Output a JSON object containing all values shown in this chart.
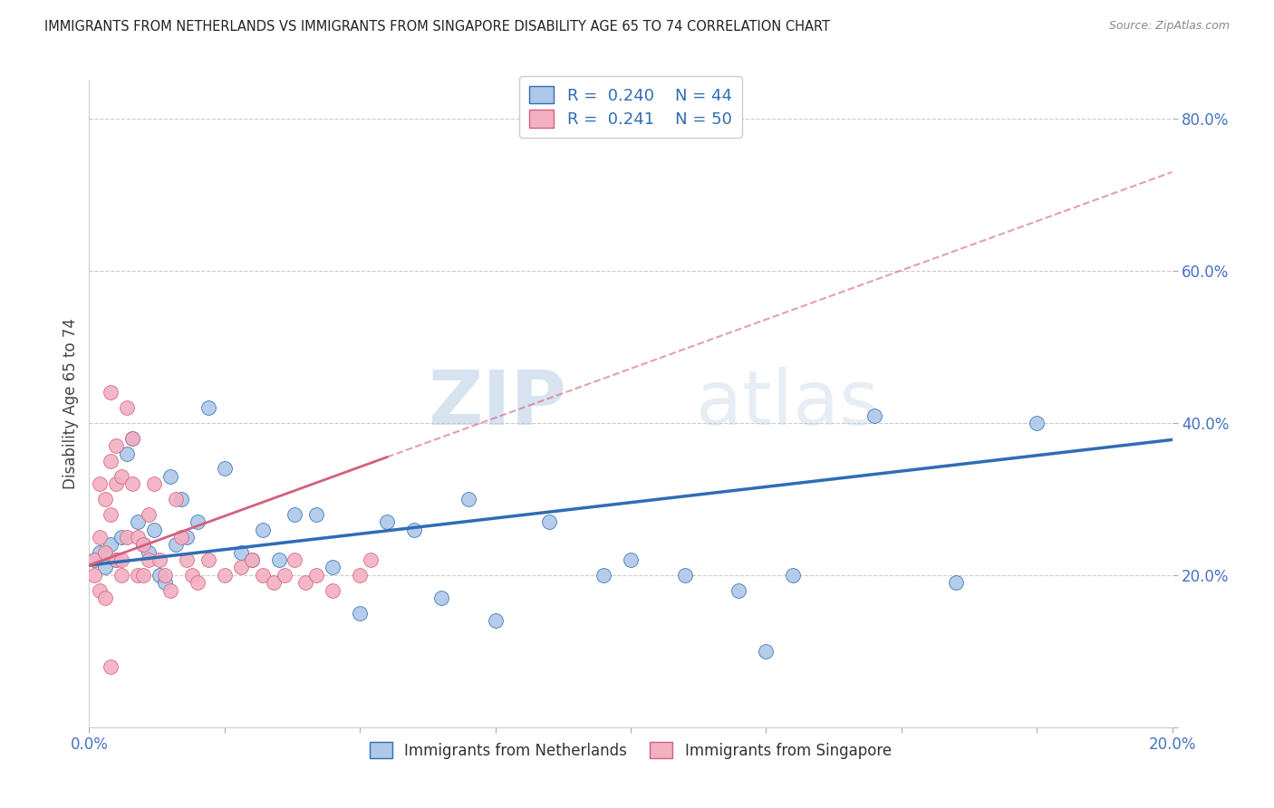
{
  "title": "IMMIGRANTS FROM NETHERLANDS VS IMMIGRANTS FROM SINGAPORE DISABILITY AGE 65 TO 74 CORRELATION CHART",
  "source": "Source: ZipAtlas.com",
  "ylabel": "Disability Age 65 to 74",
  "legend_label1": "Immigrants from Netherlands",
  "legend_label2": "Immigrants from Singapore",
  "R1": "0.240",
  "N1": "44",
  "R2": "0.241",
  "N2": "50",
  "xlim": [
    0.0,
    0.2
  ],
  "ylim": [
    0.0,
    0.85
  ],
  "xticks": [
    0.0,
    0.025,
    0.05,
    0.075,
    0.1,
    0.125,
    0.15,
    0.175,
    0.2
  ],
  "yticks": [
    0.0,
    0.2,
    0.4,
    0.6,
    0.8
  ],
  "ytick_labels": [
    "",
    "20.0%",
    "40.0%",
    "60.0%",
    "80.0%"
  ],
  "color_netherlands": "#adc8e8",
  "color_singapore": "#f2b0c2",
  "color_netherlands_line": "#2f6db5",
  "color_singapore_line": "#d45f7a",
  "watermark_zip": "ZIP",
  "watermark_atlas": "atlas",
  "netherlands_x": [
    0.001,
    0.002,
    0.003,
    0.004,
    0.005,
    0.006,
    0.007,
    0.008,
    0.009,
    0.01,
    0.011,
    0.012,
    0.013,
    0.014,
    0.015,
    0.016,
    0.017,
    0.018,
    0.02,
    0.022,
    0.025,
    0.028,
    0.03,
    0.032,
    0.035,
    0.038,
    0.042,
    0.045,
    0.05,
    0.055,
    0.06,
    0.065,
    0.07,
    0.075,
    0.085,
    0.095,
    0.1,
    0.11,
    0.12,
    0.125,
    0.13,
    0.145,
    0.16,
    0.175
  ],
  "netherlands_y": [
    0.22,
    0.23,
    0.21,
    0.24,
    0.22,
    0.25,
    0.36,
    0.38,
    0.27,
    0.24,
    0.23,
    0.26,
    0.2,
    0.19,
    0.33,
    0.24,
    0.3,
    0.25,
    0.27,
    0.42,
    0.34,
    0.23,
    0.22,
    0.26,
    0.22,
    0.28,
    0.28,
    0.21,
    0.15,
    0.27,
    0.26,
    0.17,
    0.3,
    0.14,
    0.27,
    0.2,
    0.22,
    0.2,
    0.18,
    0.1,
    0.2,
    0.41,
    0.19,
    0.4
  ],
  "singapore_x": [
    0.001,
    0.001,
    0.002,
    0.002,
    0.002,
    0.003,
    0.003,
    0.003,
    0.004,
    0.004,
    0.004,
    0.005,
    0.005,
    0.005,
    0.006,
    0.006,
    0.006,
    0.007,
    0.007,
    0.008,
    0.008,
    0.009,
    0.009,
    0.01,
    0.01,
    0.011,
    0.011,
    0.012,
    0.013,
    0.014,
    0.015,
    0.016,
    0.017,
    0.018,
    0.019,
    0.02,
    0.022,
    0.025,
    0.028,
    0.03,
    0.032,
    0.034,
    0.036,
    0.038,
    0.04,
    0.042,
    0.045,
    0.05,
    0.052,
    0.004
  ],
  "singapore_y": [
    0.22,
    0.2,
    0.32,
    0.25,
    0.18,
    0.3,
    0.23,
    0.17,
    0.35,
    0.28,
    0.44,
    0.22,
    0.37,
    0.32,
    0.22,
    0.33,
    0.2,
    0.42,
    0.25,
    0.38,
    0.32,
    0.25,
    0.2,
    0.24,
    0.2,
    0.22,
    0.28,
    0.32,
    0.22,
    0.2,
    0.18,
    0.3,
    0.25,
    0.22,
    0.2,
    0.19,
    0.22,
    0.2,
    0.21,
    0.22,
    0.2,
    0.19,
    0.2,
    0.22,
    0.19,
    0.2,
    0.18,
    0.2,
    0.22,
    0.08
  ],
  "trend_nl_x0": 0.0,
  "trend_nl_y0": 0.213,
  "trend_nl_x1": 0.2,
  "trend_nl_y1": 0.378,
  "trend_sg_x0": 0.0,
  "trend_sg_y0": 0.213,
  "trend_sg_x1": 0.2,
  "trend_sg_y1": 0.73
}
